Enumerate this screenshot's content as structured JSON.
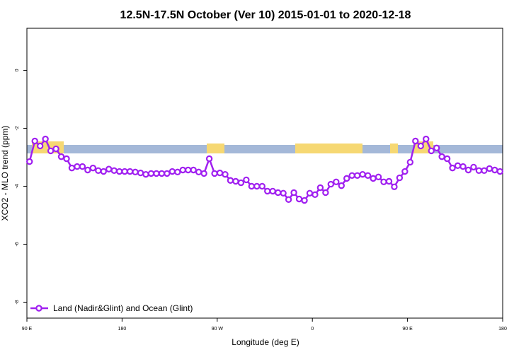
{
  "chart_data": {
    "type": "line",
    "title": "12.5N-17.5N October (Ver 10)   2015-01-01 to 2020-12-18",
    "x_label": "Longitude (deg E)",
    "y_label": "XCO2 - MLO trend (ppm)",
    "x": [
      92.5,
      97.5,
      102.5,
      107.5,
      112.5,
      117.5,
      122.5,
      127.5,
      132.5,
      137.5,
      142.5,
      147.5,
      152.5,
      157.5,
      162.5,
      167.5,
      172.5,
      177.5,
      182.5,
      187.5,
      192.5,
      197.5,
      202.5,
      207.5,
      212.5,
      217.5,
      222.5,
      227.5,
      232.5,
      237.5,
      242.5,
      247.5,
      252.5,
      257.5,
      262.5,
      267.5,
      272.5,
      277.5,
      282.5,
      287.5,
      292.5,
      297.5,
      302.5,
      307.5,
      312.5,
      317.5,
      322.5,
      327.5,
      332.5,
      337.5,
      342.5,
      347.5,
      352.5,
      357.5,
      362.5,
      367.5,
      372.5,
      377.5,
      382.5,
      387.5,
      392.5,
      397.5,
      402.5,
      407.5,
      412.5,
      417.5,
      422.5,
      427.5,
      432.5,
      437.5,
      442.5,
      447.5,
      452.5,
      457.5,
      462.5,
      467.5,
      472.5,
      477.5,
      482.5,
      487.5,
      492.5,
      497.5,
      502.5,
      507.5,
      512.5,
      517.5,
      522.5,
      527.5,
      532.5,
      537.5
    ],
    "series": [
      {
        "name": "Land (Nadir&Glint) and Ocean (Glint)",
        "color": "#a020f0",
        "values": [
          -3.15,
          -2.44,
          -2.61,
          -2.37,
          -2.78,
          -2.71,
          -2.98,
          -3.05,
          -3.37,
          -3.32,
          -3.32,
          -3.44,
          -3.37,
          -3.46,
          -3.49,
          -3.41,
          -3.46,
          -3.49,
          -3.49,
          -3.49,
          -3.51,
          -3.54,
          -3.59,
          -3.56,
          -3.56,
          -3.56,
          -3.56,
          -3.49,
          -3.51,
          -3.44,
          -3.44,
          -3.44,
          -3.51,
          -3.56,
          -3.05,
          -3.56,
          -3.54,
          -3.59,
          -3.8,
          -3.83,
          -3.88,
          -3.78,
          -4.0,
          -4.0,
          -4.0,
          -4.17,
          -4.17,
          -4.22,
          -4.24,
          -4.46,
          -4.22,
          -4.44,
          -4.49,
          -4.24,
          -4.29,
          -4.05,
          -4.22,
          -3.93,
          -3.85,
          -3.98,
          -3.73,
          -3.63,
          -3.63,
          -3.59,
          -3.63,
          -3.73,
          -3.68,
          -3.85,
          -3.83,
          -4.02,
          -3.71,
          -3.49,
          -3.17,
          -2.44,
          -2.61,
          -2.37,
          -2.78,
          -2.68,
          -2.98,
          -3.05,
          -3.37,
          -3.29,
          -3.32,
          -3.44,
          -3.34,
          -3.46,
          -3.46,
          -3.39,
          -3.44,
          -3.49
        ]
      }
    ],
    "xlim": [
      90,
      540
    ],
    "xticks": [
      {
        "value": 90,
        "label": "90 E"
      },
      {
        "value": 180,
        "label": "180"
      },
      {
        "value": 270,
        "label": "90 W"
      },
      {
        "value": 360,
        "label": "0"
      },
      {
        "value": 450,
        "label": "90 E"
      },
      {
        "value": 540,
        "label": "180"
      }
    ],
    "ylim": [
      -8.55,
      1.45
    ],
    "yticks": [
      0,
      -2,
      -4,
      -6,
      -8
    ],
    "legend": "bottom-left"
  }
}
